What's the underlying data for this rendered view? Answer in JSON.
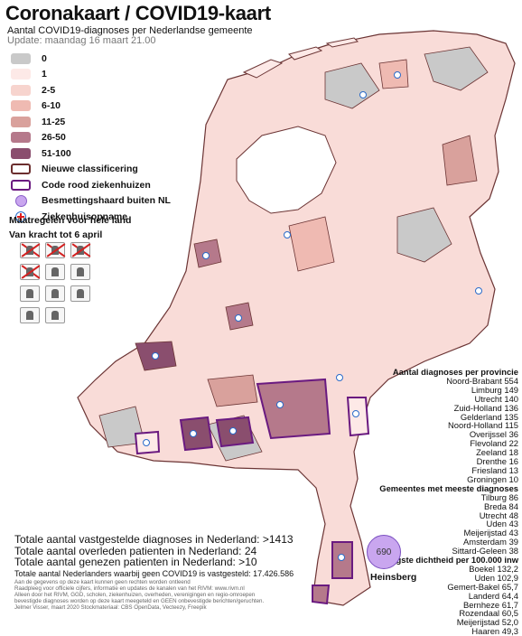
{
  "title": "Coronakaart / COVID19-kaart",
  "subtitle": "Aantal COVID19-diagnoses per Nederlandse gemeente",
  "update": "Update: maandag 16 maart 21.00",
  "legend": [
    {
      "label": "0",
      "color": "#c9c9c9"
    },
    {
      "label": "1",
      "color": "#fde9e7"
    },
    {
      "label": "2-5",
      "color": "#f7d4ce"
    },
    {
      "label": "6-10",
      "color": "#efbab2"
    },
    {
      "label": "11-25",
      "color": "#d9a19c"
    },
    {
      "label": "26-50",
      "color": "#b5798b"
    },
    {
      "label": "51-100",
      "color": "#8a4e6e"
    }
  ],
  "legend_outline": {
    "new_class": "Nieuwe classificering",
    "code_red": "Code rood ziekenhuizen"
  },
  "legend_symbols": {
    "foreign": "Besmettingshaard buiten NL",
    "hospital": "Ziekenhuisopname"
  },
  "measures": {
    "heading": "Maatregelen voor hele land",
    "until": "Van kracht tot 6 april"
  },
  "measure_icons": [
    {
      "icon": "no-gathering-icon",
      "banned": true
    },
    {
      "icon": "no-event-icon",
      "banned": true
    },
    {
      "icon": "no-handshake-icon",
      "banned": true
    },
    {
      "icon": "no-restaurant-icon",
      "banned": true
    },
    {
      "icon": "school-closed-icon",
      "banned": false
    },
    {
      "icon": "home-icon",
      "banned": false
    },
    {
      "icon": "graduation-icon",
      "banned": false
    },
    {
      "icon": "work-from-home-icon",
      "banned": false
    },
    {
      "icon": "family-icon",
      "banned": false
    },
    {
      "icon": "wash-hands-icon",
      "banned": false
    },
    {
      "icon": "sick-stay-home-icon",
      "banned": false
    }
  ],
  "province_heading": "Aantal diagnoses per provincie",
  "provinces": [
    "Noord-Brabant 554",
    "Limburg 149",
    "Utrecht 140",
    "Zuid-Holland 136",
    "Gelderland 135",
    "Noord-Holland 115",
    "Overijssel 36",
    "Flevoland 22",
    "Zeeland 18",
    "Drenthe 16",
    "Friesland  13",
    "Groningen 10"
  ],
  "municipality_heading": "Gemeentes met meeste diagnoses",
  "municipalities": [
    "Tilburg 86",
    "Breda 84",
    "Utrecht 48",
    "Uden 43",
    "Meijerijstad 43",
    "Amsterdam 39",
    "Sittard-Geleen 38"
  ],
  "density_heading": "Hoogste dichtheid per 100.000 inw",
  "density": [
    "Boekel 132,2",
    "Uden 102,9",
    "Gemert-Bakel 65,7",
    "Landerd 64,4",
    "Bernheze 61,7",
    "Rozendaal 60,5",
    "Meijerijstad 52,0",
    "Haaren 49,3"
  ],
  "bubble": {
    "value": "690",
    "label": "Heinsberg"
  },
  "totals": [
    "Totale aantal vastgestelde diagnoses in Nederland: >1413",
    "Totale aantal overleden patienten in Nederland: 24",
    "Totale aantal genezen patienten in Nederland: >10"
  ],
  "healthy": "Totale aantal Nederlanders waarbij geen COVID19 is vastgesteld: 17.426.586",
  "credits": [
    "Aan de gegevens op deze kaart kunnen geen rechten worden ontleend",
    "Raadpleeg voor officiele cijfers, informatie en updates de kanalen van het RIVM: www.rivm.nl",
    "Alleen door het RIVM, GGD, scholen, ziekenhuizen, overheden, verenigingen en regio-omroepen",
    "bevestigde diagnoses worden op deze kaart meegeteld en GEEN onbevestigde berichten/geruchten.",
    "Jelmer Visser, maart 2020 Stockmateriaal: CBS OpenData, Vecteezy, Freepik"
  ]
}
